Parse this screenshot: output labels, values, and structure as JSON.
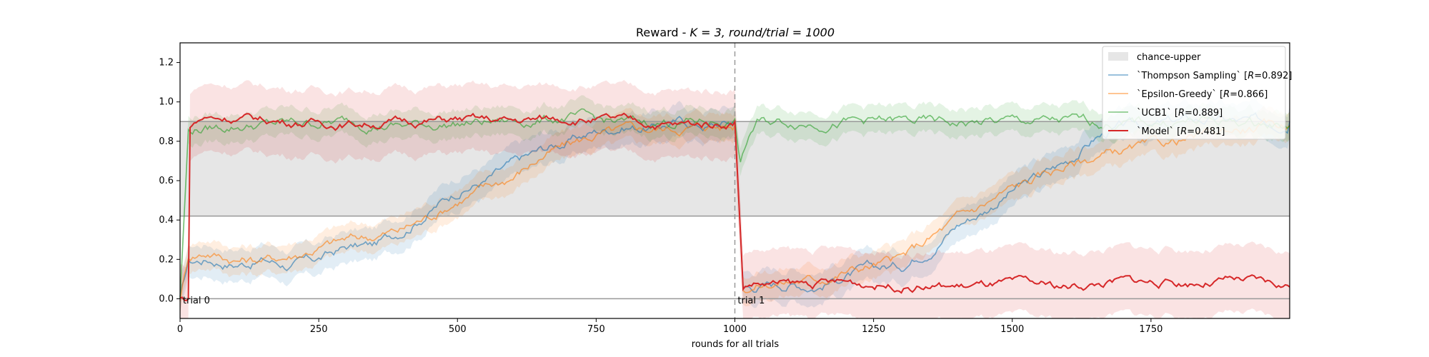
{
  "chart_data": {
    "type": "line",
    "title": "Reward - K = 3, round/trial = 1000",
    "title_parts": {
      "prefix": "Reward - ",
      "k": "K = 3, ",
      "rt": "round/trial = 1000"
    },
    "xlabel": "rounds for all trials",
    "ylabel": "",
    "xlim": [
      0,
      2000
    ],
    "ylim": [
      -0.1,
      1.3
    ],
    "x_ticks": [
      0,
      250,
      500,
      750,
      1000,
      1250,
      1500,
      1750
    ],
    "x_tick_labels": [
      "0",
      "250",
      "500",
      "750",
      "1000",
      "1250",
      "1500",
      "1750"
    ],
    "y_ticks": [
      0.0,
      0.2,
      0.4,
      0.6,
      0.8,
      1.0,
      1.2
    ],
    "y_tick_labels": [
      "0.0",
      "0.2",
      "0.4",
      "0.6",
      "0.8",
      "1.0",
      "1.2"
    ],
    "grid": false,
    "legend_position": "top-right",
    "reference_lines": [
      0.0,
      0.42,
      0.9
    ],
    "chance_band": {
      "name": "chance-upper",
      "y0": 0.42,
      "y1": 0.9,
      "color": "#e6e6e6"
    },
    "trial_boundary": 1000,
    "annotations": [
      {
        "x": 5,
        "y": -0.005,
        "text": "trial 0"
      },
      {
        "x": 1005,
        "y": -0.005,
        "text": "trial 1"
      }
    ],
    "series": [
      {
        "name": "`Thompson Sampling` [R=0.892]",
        "legend_prefix": "`Thompson Sampling` [",
        "legend_metric": "R",
        "legend_suffix": "=0.892]",
        "color": "#1f77b4",
        "band_halfwidth": 0.08,
        "x": [
          0,
          15,
          50,
          100,
          150,
          200,
          250,
          300,
          350,
          400,
          450,
          500,
          550,
          600,
          650,
          700,
          750,
          800,
          850,
          900,
          950,
          1000,
          1015,
          1050,
          1100,
          1150,
          1200,
          1250,
          1300,
          1350,
          1400,
          1450,
          1500,
          1550,
          1600,
          1650,
          1700,
          1750,
          1800,
          1850,
          1900,
          1950,
          2000
        ],
        "y": [
          0.0,
          0.18,
          0.2,
          0.18,
          0.2,
          0.17,
          0.2,
          0.26,
          0.27,
          0.35,
          0.45,
          0.55,
          0.6,
          0.68,
          0.75,
          0.8,
          0.85,
          0.88,
          0.87,
          0.9,
          0.88,
          0.9,
          0.06,
          0.07,
          0.08,
          0.07,
          0.12,
          0.15,
          0.17,
          0.26,
          0.38,
          0.45,
          0.55,
          0.62,
          0.7,
          0.82,
          0.87,
          0.88,
          0.9,
          0.91,
          0.9,
          0.89,
          0.9
        ]
      },
      {
        "name": "`Epsilon-Greedy` [R=0.866]",
        "legend_prefix": "`Epsilon-Greedy` [",
        "legend_metric": "R",
        "legend_suffix": "=0.866]",
        "color": "#ff7f0e",
        "band_halfwidth": 0.07,
        "x": [
          0,
          15,
          50,
          100,
          150,
          200,
          250,
          300,
          350,
          400,
          450,
          500,
          550,
          600,
          650,
          700,
          750,
          800,
          850,
          900,
          950,
          1000,
          1015,
          1050,
          1100,
          1150,
          1200,
          1250,
          1300,
          1350,
          1400,
          1450,
          1500,
          1550,
          1600,
          1650,
          1700,
          1750,
          1800,
          1850,
          1900,
          1950,
          2000
        ],
        "y": [
          0.0,
          0.22,
          0.24,
          0.2,
          0.2,
          0.22,
          0.26,
          0.3,
          0.32,
          0.35,
          0.42,
          0.5,
          0.56,
          0.62,
          0.72,
          0.78,
          0.83,
          0.85,
          0.86,
          0.87,
          0.88,
          0.88,
          0.07,
          0.08,
          0.09,
          0.1,
          0.14,
          0.17,
          0.2,
          0.3,
          0.4,
          0.48,
          0.56,
          0.62,
          0.68,
          0.72,
          0.75,
          0.77,
          0.8,
          0.83,
          0.86,
          0.87,
          0.88
        ]
      },
      {
        "name": "`UCB1` [R=0.889]",
        "legend_prefix": "`UCB1` [",
        "legend_metric": "R",
        "legend_suffix": "=0.889]",
        "color": "#2ca02c",
        "band_halfwidth": 0.07,
        "x": [
          0,
          15,
          30,
          100,
          200,
          300,
          400,
          500,
          600,
          700,
          800,
          900,
          1000,
          1010,
          1025,
          1040,
          1100,
          1200,
          1300,
          1400,
          1500,
          1600,
          1700,
          1800,
          1900,
          2000
        ],
        "y": [
          0.0,
          0.85,
          0.86,
          0.88,
          0.89,
          0.9,
          0.88,
          0.89,
          0.9,
          0.92,
          0.89,
          0.9,
          0.9,
          0.68,
          0.82,
          0.89,
          0.9,
          0.9,
          0.9,
          0.89,
          0.9,
          0.9,
          0.89,
          0.9,
          0.9,
          0.88
        ]
      },
      {
        "name": "`Model` [R=0.481]",
        "legend_prefix": "`Model` [",
        "legend_metric": "R",
        "legend_suffix": "=0.481]",
        "color": "#d62728",
        "band_halfwidth": 0.17,
        "x": [
          0,
          15,
          18,
          40,
          100,
          200,
          300,
          400,
          500,
          600,
          700,
          800,
          900,
          1000,
          1015,
          1030,
          1100,
          1200,
          1300,
          1400,
          1500,
          1600,
          1700,
          1800,
          1900,
          2000
        ],
        "y": [
          0.0,
          0.0,
          0.88,
          0.92,
          0.92,
          0.9,
          0.89,
          0.9,
          0.91,
          0.9,
          0.92,
          0.9,
          0.88,
          0.9,
          0.06,
          0.08,
          0.07,
          0.08,
          0.07,
          0.06,
          0.07,
          0.06,
          0.09,
          0.08,
          0.09,
          0.06
        ]
      }
    ]
  }
}
